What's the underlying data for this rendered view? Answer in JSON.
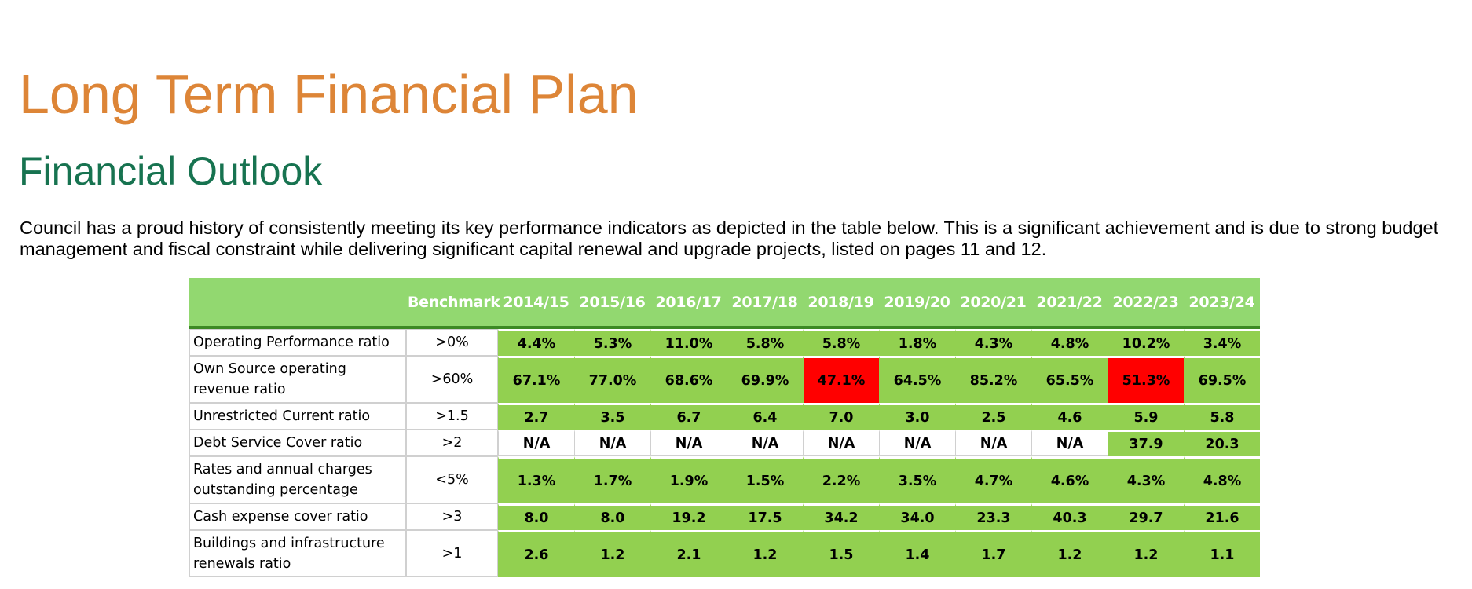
{
  "page": {
    "title": "Long Term Financial Plan",
    "subtitle": "Financial Outlook",
    "intro": "Council has a proud history of consistently meeting its key performance indicators as depicted in the table below. This is a significant achievement and is due to strong budget management and fiscal constraint while delivering significant capital renewal and upgrade projects, listed on pages 11 and 12."
  },
  "colors": {
    "title": "#dd8537",
    "subtitle": "#177350",
    "header_fill": "#92d870",
    "met_fill": "#92d050",
    "not_met_fill": "#ff0000",
    "header_rule": "#3c8a24"
  },
  "table": {
    "benchmark_header": "Benchmark",
    "years": [
      "2014/15",
      "2015/16",
      "2016/17",
      "2017/18",
      "2018/19",
      "2019/20",
      "2020/21",
      "2021/22",
      "2022/23",
      "2023/24"
    ],
    "rows": [
      {
        "label": "Operating Performance ratio",
        "benchmark": ">0%",
        "values": [
          "4.4%",
          "5.3%",
          "11.0%",
          "5.8%",
          "5.8%",
          "1.8%",
          "4.3%",
          "4.8%",
          "10.2%",
          "3.4%"
        ],
        "status": [
          "met",
          "met",
          "met",
          "met",
          "met",
          "met",
          "met",
          "met",
          "met",
          "met"
        ]
      },
      {
        "label": "Own Source operating revenue ratio",
        "benchmark": ">60%",
        "values": [
          "67.1%",
          "77.0%",
          "68.6%",
          "69.9%",
          "47.1%",
          "64.5%",
          "85.2%",
          "65.5%",
          "51.3%",
          "69.5%"
        ],
        "status": [
          "met",
          "met",
          "met",
          "met",
          "not_met",
          "met",
          "met",
          "met",
          "not_met",
          "met"
        ]
      },
      {
        "label": "Unrestricted Current ratio",
        "benchmark": ">1.5",
        "values": [
          "2.7",
          "3.5",
          "6.7",
          "6.4",
          "7.0",
          "3.0",
          "2.5",
          "4.6",
          "5.9",
          "5.8"
        ],
        "status": [
          "met",
          "met",
          "met",
          "met",
          "met",
          "met",
          "met",
          "met",
          "met",
          "met"
        ]
      },
      {
        "label": "Debt Service Cover ratio",
        "benchmark": ">2",
        "values": [
          "N/A",
          "N/A",
          "N/A",
          "N/A",
          "N/A",
          "N/A",
          "N/A",
          "N/A",
          "37.9",
          "20.3"
        ],
        "status": [
          "na",
          "na",
          "na",
          "na",
          "na",
          "na",
          "na",
          "na",
          "met",
          "met"
        ]
      },
      {
        "label": "Rates and annual charges outstanding percentage",
        "benchmark": "<5%",
        "values": [
          "1.3%",
          "1.7%",
          "1.9%",
          "1.5%",
          "2.2%",
          "3.5%",
          "4.7%",
          "4.6%",
          "4.3%",
          "4.8%"
        ],
        "status": [
          "met",
          "met",
          "met",
          "met",
          "met",
          "met",
          "met",
          "met",
          "met",
          "met"
        ]
      },
      {
        "label": "Cash expense cover ratio",
        "benchmark": ">3",
        "values": [
          "8.0",
          "8.0",
          "19.2",
          "17.5",
          "34.2",
          "34.0",
          "23.3",
          "40.3",
          "29.7",
          "21.6"
        ],
        "status": [
          "met",
          "met",
          "met",
          "met",
          "met",
          "met",
          "met",
          "met",
          "met",
          "met"
        ]
      },
      {
        "label": "Buildings and infrastructure renewals ratio",
        "benchmark": ">1",
        "values": [
          "2.6",
          "1.2",
          "2.1",
          "1.2",
          "1.5",
          "1.4",
          "1.7",
          "1.2",
          "1.2",
          "1.1"
        ],
        "status": [
          "met",
          "met",
          "met",
          "met",
          "met",
          "met",
          "met",
          "met",
          "met",
          "met"
        ]
      }
    ]
  }
}
